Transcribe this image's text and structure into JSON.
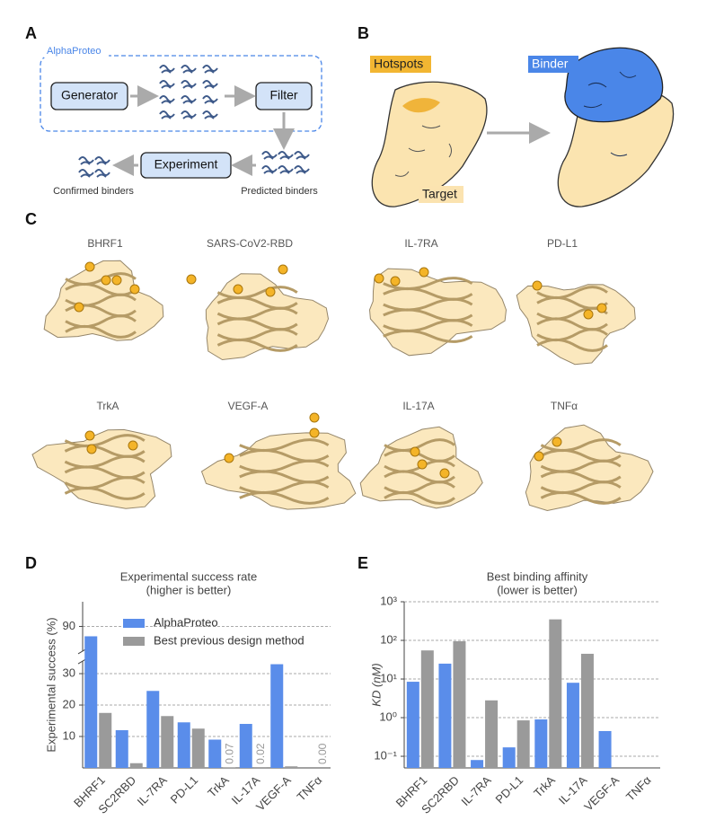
{
  "panel_labels": [
    "A",
    "B",
    "C",
    "D",
    "E"
  ],
  "pipeline": {
    "group": "AlphaProteo",
    "generator": "Generator",
    "filter": "Filter",
    "experiment": "Experiment",
    "confirmed": "Confirmed binders",
    "predicted": "Predicted binders"
  },
  "binding": {
    "hotspots": "Hotspots",
    "binder": "Binder",
    "target": "Target"
  },
  "targets": [
    "BHRF1",
    "SARS-CoV2-RBD",
    "IL-7RA",
    "PD-L1",
    "TrkA",
    "VEGF-A",
    "IL-17A",
    "TNFα"
  ],
  "chart_data": [
    {
      "type": "bar",
      "title": "Experimental success rate",
      "subtitle": "(higher is better)",
      "ylabel": "Experimental success (%)",
      "categories": [
        "BHRF1",
        "SC2RBD",
        "IL-7RA",
        "PD-L1",
        "TrkA",
        "IL-17A",
        "VEGF-A",
        "TNFα"
      ],
      "series": [
        {
          "name": "AlphaProteo",
          "color": "#5a8dea",
          "values": [
            88,
            12,
            24.5,
            14.5,
            9,
            14,
            33,
            0
          ]
        },
        {
          "name": "Best previous design method",
          "color": "#9a9a9a",
          "values": [
            17.5,
            1.5,
            16.5,
            12.5,
            0.07,
            0.02,
            0.5,
            0
          ],
          "value_labels": [
            null,
            null,
            null,
            null,
            "0.07",
            "0.02",
            null,
            "0.00"
          ]
        }
      ],
      "ylim": [
        0,
        95
      ],
      "y_break": [
        34,
        85
      ],
      "yticks": [
        10,
        20,
        30,
        90
      ],
      "grid": true,
      "legend": "upper-right"
    },
    {
      "type": "bar",
      "title": "Best binding affinity",
      "subtitle": "(lower is better)",
      "ylabel": "KD (nM)",
      "log_scale": true,
      "categories": [
        "BHRF1",
        "SC2RBD",
        "IL-7RA",
        "PD-L1",
        "TrkA",
        "IL-17A",
        "VEGF-A",
        "TNFα"
      ],
      "series": [
        {
          "color": "#5a8dea",
          "values": [
            8.5,
            25,
            0.08,
            0.17,
            0.9,
            8,
            0.45,
            null
          ]
        },
        {
          "color": "#9a9a9a",
          "values": [
            55,
            95,
            2.8,
            0.85,
            350,
            45,
            null,
            null
          ]
        }
      ],
      "ylim": [
        0.05,
        1000
      ],
      "yticks": [
        {
          "value": 0.1,
          "label": "10⁻¹"
        },
        {
          "value": 1,
          "label": "10⁰"
        },
        {
          "value": 10,
          "label": "10¹"
        },
        {
          "value": 100,
          "label": "10²"
        },
        {
          "value": 1000,
          "label": "10³"
        }
      ],
      "grid": true
    }
  ]
}
